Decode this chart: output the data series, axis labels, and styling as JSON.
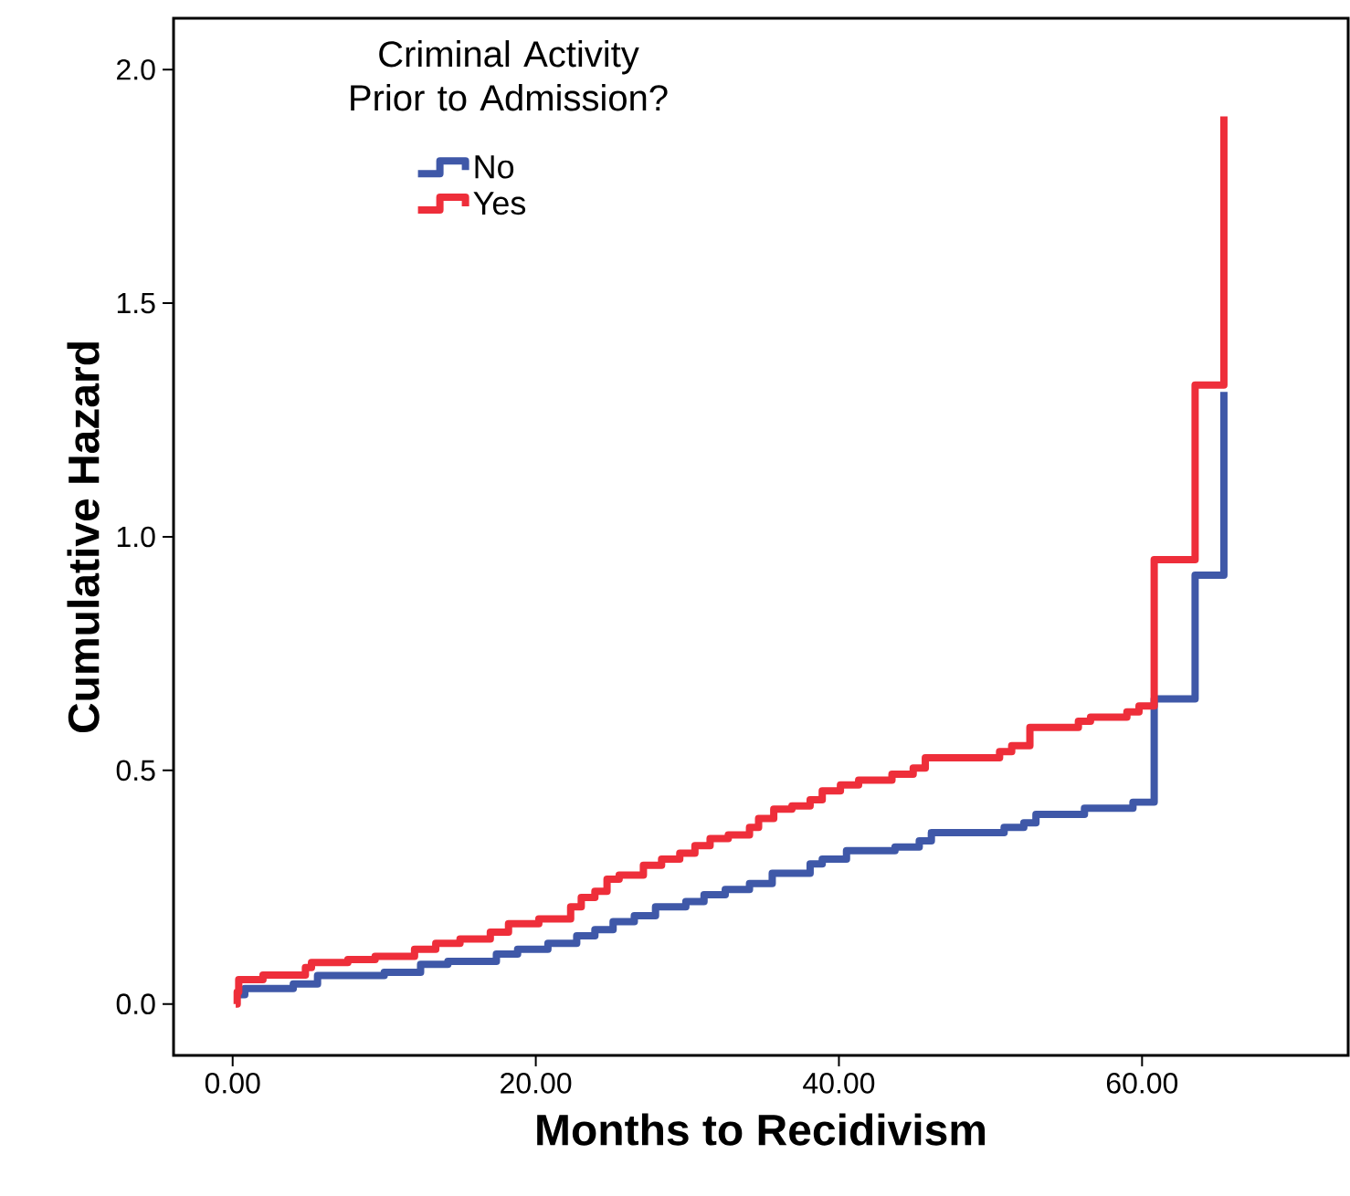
{
  "chart_data": {
    "type": "step",
    "xlabel": "Months to Recidivism",
    "ylabel": "Cumulative Hazard",
    "legend_title": "Criminal Activity Prior to Admission?",
    "xlim": [
      -3.9,
      73.6
    ],
    "ylim": [
      -0.11,
      2.11
    ],
    "xticks": [
      {
        "value": 0,
        "label": "0.00"
      },
      {
        "value": 20,
        "label": "20.00"
      },
      {
        "value": 40,
        "label": "40.00"
      },
      {
        "value": 60,
        "label": "60.00"
      }
    ],
    "yticks": [
      {
        "value": 0,
        "label": "0.0"
      },
      {
        "value": 0.5,
        "label": "0.5"
      },
      {
        "value": 1,
        "label": "1.0"
      },
      {
        "value": 1.5,
        "label": "1.5"
      },
      {
        "value": 2,
        "label": "2.0"
      }
    ],
    "legend": "top left",
    "grid": false,
    "marker": "none",
    "line_style": "solid",
    "series": [
      {
        "name": "No",
        "color": "#3f58a8",
        "x": [
          0.3,
          0.8,
          4.0,
          5.6,
          10.0,
          12.4,
          14.2,
          17.4,
          18.8,
          20.8,
          22.7,
          23.9,
          25.1,
          26.5,
          27.9,
          29.9,
          31.1,
          32.5,
          34.1,
          35.6,
          38.1,
          38.9,
          40.5,
          43.7,
          45.3,
          46.1,
          50.9,
          52.2,
          53.0,
          56.2,
          59.4,
          60.8,
          63.5,
          65.4
        ],
        "values": [
          0.02,
          0.033,
          0.043,
          0.061,
          0.068,
          0.085,
          0.091,
          0.107,
          0.117,
          0.13,
          0.146,
          0.159,
          0.176,
          0.189,
          0.208,
          0.219,
          0.234,
          0.245,
          0.258,
          0.28,
          0.3,
          0.31,
          0.328,
          0.336,
          0.349,
          0.367,
          0.378,
          0.388,
          0.406,
          0.419,
          0.432,
          0.653,
          0.918,
          1.31
        ]
      },
      {
        "name": "Yes",
        "color": "#ee2e3a",
        "x": [
          0.2,
          0.3,
          0.4,
          2.0,
          4.8,
          5.2,
          7.6,
          9.4,
          12.0,
          13.4,
          15.0,
          17.0,
          18.2,
          20.2,
          22.3,
          23.0,
          23.9,
          24.7,
          25.5,
          27.1,
          28.3,
          29.5,
          30.5,
          31.5,
          32.7,
          34.1,
          34.7,
          35.7,
          36.9,
          38.1,
          38.9,
          40.1,
          41.3,
          43.5,
          44.9,
          45.7,
          50.6,
          51.4,
          52.6,
          55.8,
          56.6,
          59.0,
          59.8,
          60.8,
          63.5,
          65.4
        ],
        "values": [
          0.0,
          0.026,
          0.052,
          0.062,
          0.078,
          0.089,
          0.095,
          0.102,
          0.117,
          0.13,
          0.139,
          0.154,
          0.172,
          0.182,
          0.208,
          0.228,
          0.241,
          0.267,
          0.276,
          0.297,
          0.31,
          0.323,
          0.339,
          0.354,
          0.362,
          0.378,
          0.397,
          0.417,
          0.424,
          0.437,
          0.456,
          0.469,
          0.479,
          0.492,
          0.505,
          0.527,
          0.54,
          0.553,
          0.592,
          0.605,
          0.614,
          0.625,
          0.638,
          0.951,
          1.325,
          1.9
        ]
      }
    ]
  }
}
